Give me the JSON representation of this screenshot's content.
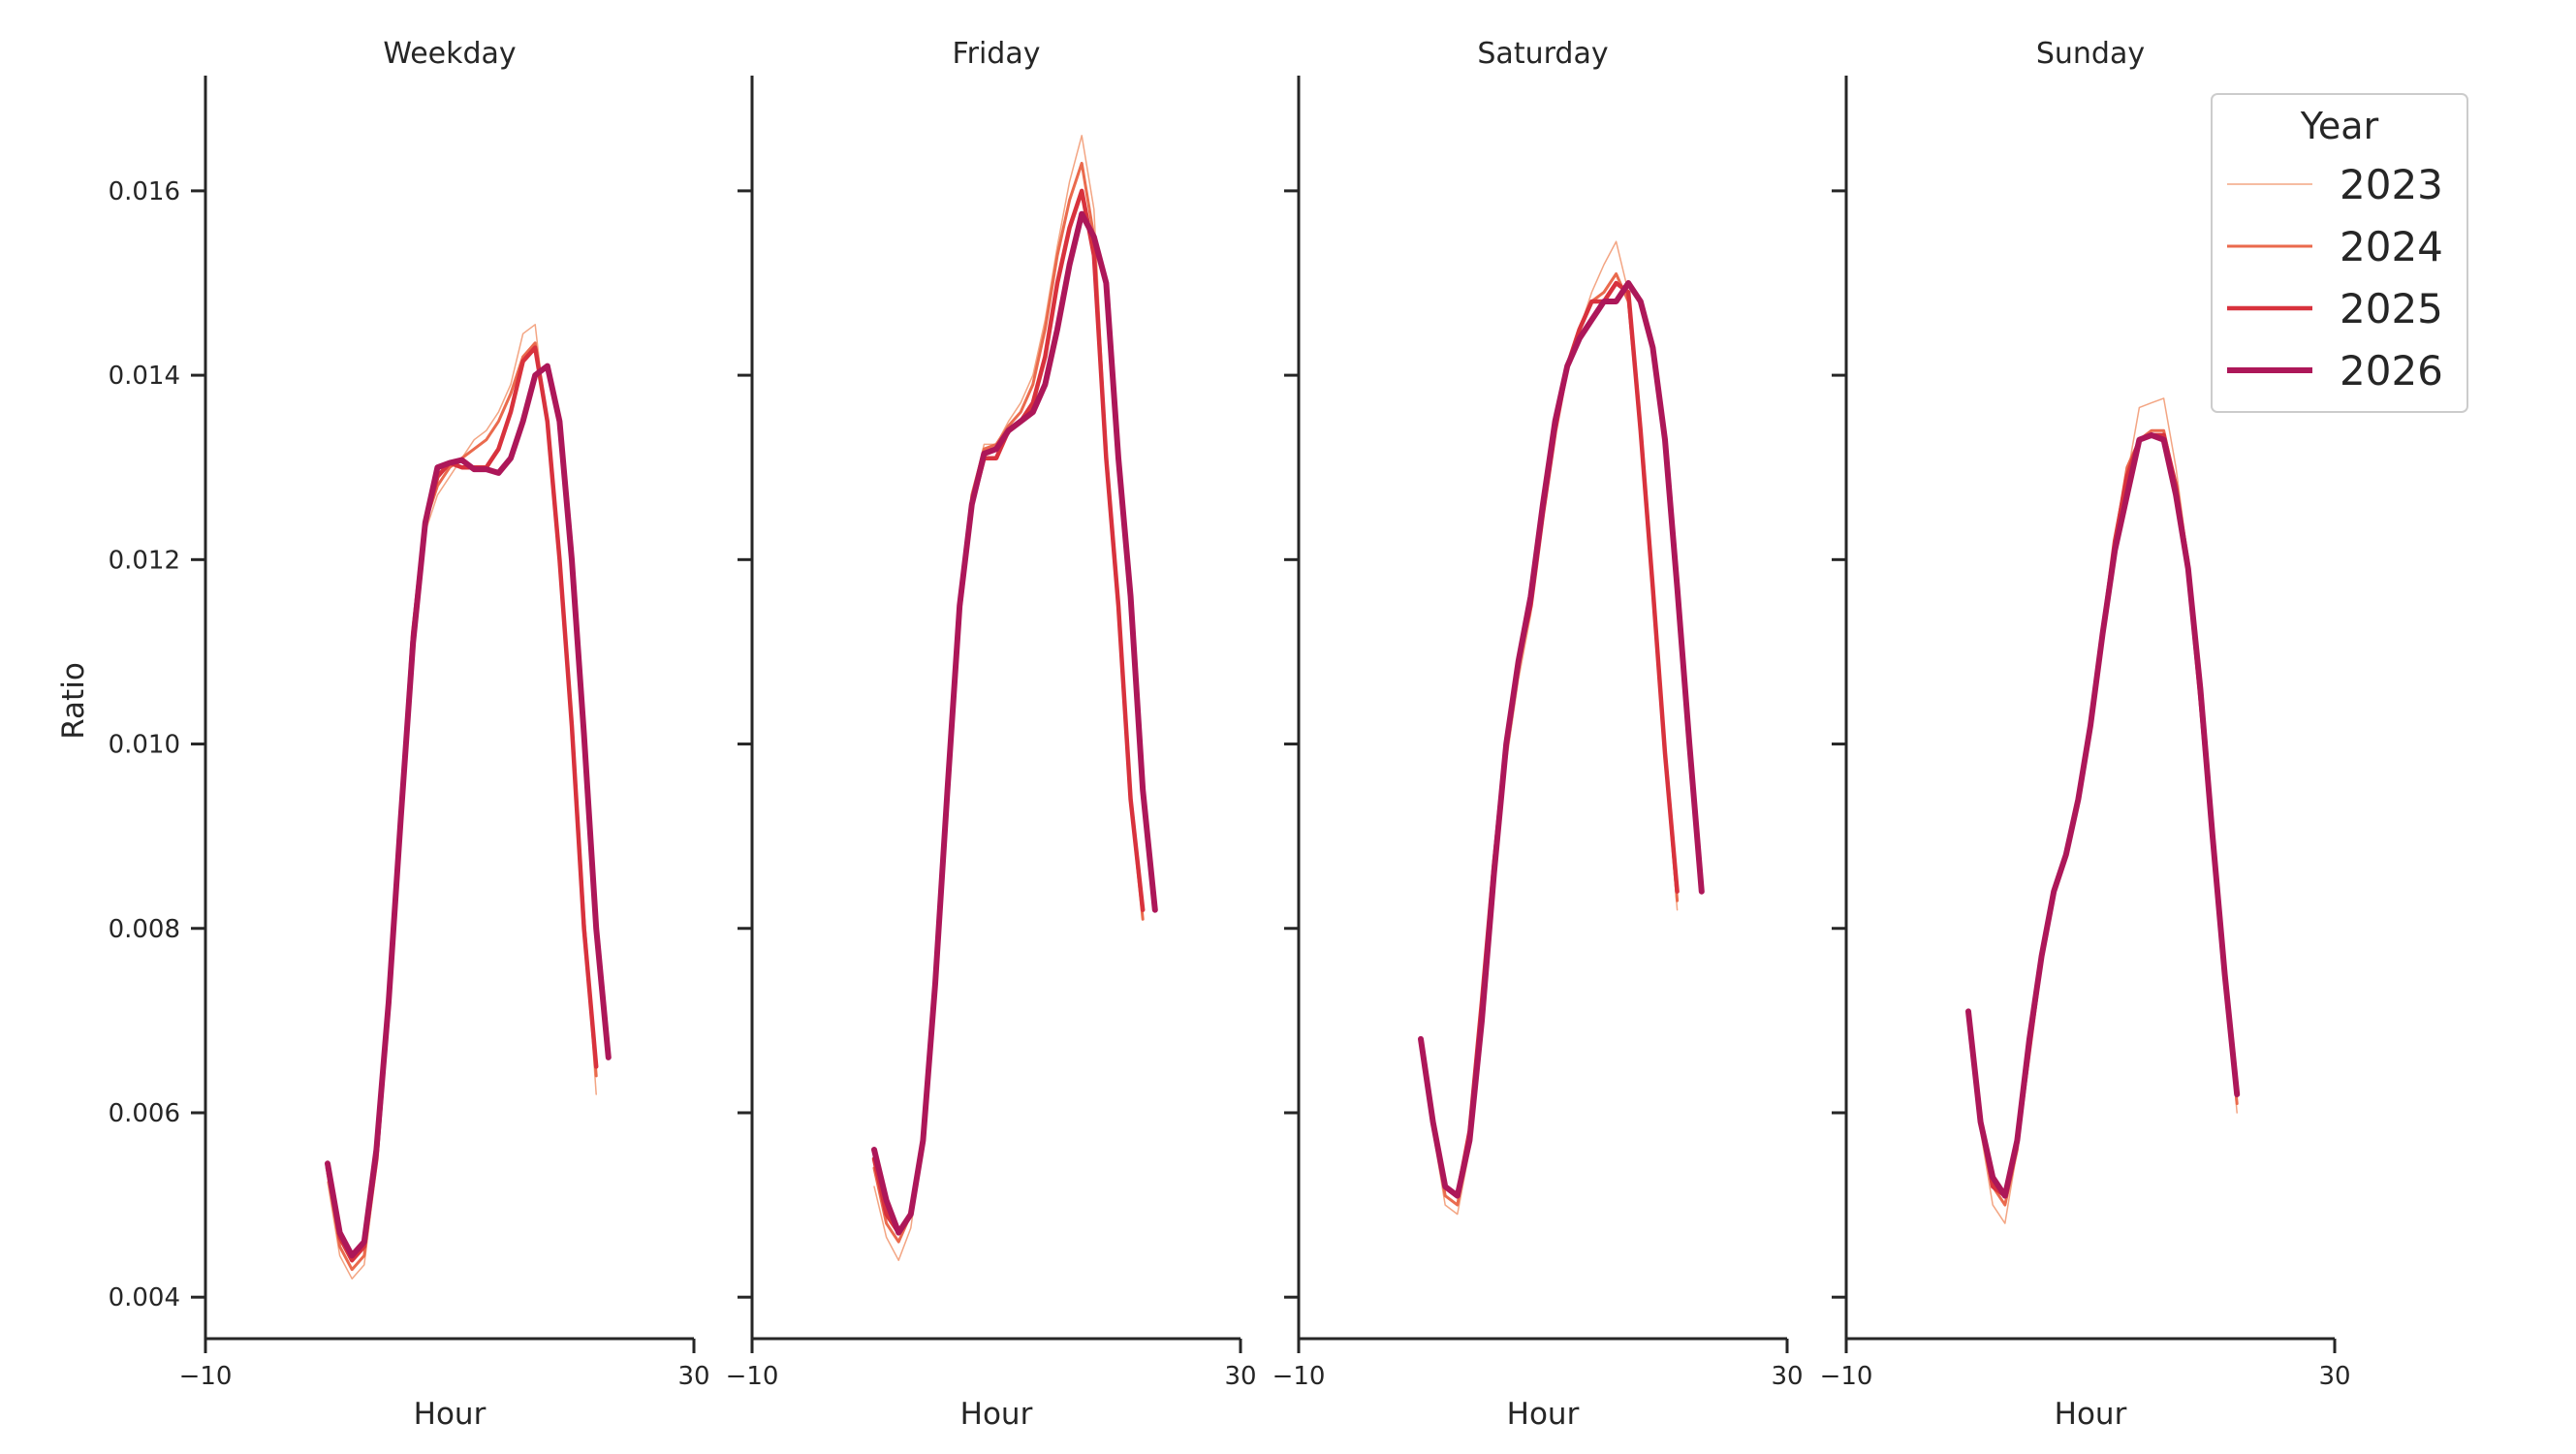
{
  "chart_data": {
    "type": "line",
    "ylabel": "Ratio",
    "xlabel": "Hour",
    "xlim": [
      -10,
      30
    ],
    "xticks": [
      -10,
      30
    ],
    "xtick_labels": [
      "−10",
      "30"
    ],
    "ylim": [
      0.00355,
      0.01725
    ],
    "yticks": [
      0.004,
      0.006,
      0.008,
      0.01,
      0.012,
      0.014,
      0.016
    ],
    "ytick_labels": [
      "0.004",
      "0.006",
      "0.008",
      "0.010",
      "0.012",
      "0.014",
      "0.016"
    ],
    "legend": {
      "title": "Year",
      "placement": "top-right",
      "entries": [
        {
          "label": "2023",
          "color": "#f3a583",
          "width": 1.5
        },
        {
          "label": "2024",
          "color": "#ea6a4d",
          "width": 3
        },
        {
          "label": "2025",
          "color": "#d8323d",
          "width": 4.5
        },
        {
          "label": "2026",
          "color": "#ad1759",
          "width": 6
        }
      ]
    },
    "panels": [
      {
        "title": "Weekday",
        "x": [
          0,
          1,
          2,
          3,
          4,
          5,
          6,
          7,
          8,
          9,
          10,
          11,
          12,
          13,
          14,
          15,
          16,
          17,
          18,
          19,
          20,
          21,
          22,
          23
        ],
        "series": [
          {
            "name": "2023",
            "values": [
              0.00525,
              0.00445,
              0.0042,
              0.00435,
              0.0054,
              0.0071,
              0.0091,
              0.0111,
              0.0123,
              0.0127,
              0.0129,
              0.0131,
              0.0133,
              0.0134,
              0.0136,
              0.0139,
              0.01445,
              0.01455,
              0.0134,
              0.0119,
              0.0101,
              0.0081,
              0.0062,
              null
            ]
          },
          {
            "name": "2024",
            "values": [
              0.00535,
              0.00455,
              0.0043,
              0.00445,
              0.0055,
              0.0072,
              0.0092,
              0.0112,
              0.0124,
              0.0128,
              0.013,
              0.0131,
              0.0132,
              0.0133,
              0.0135,
              0.0138,
              0.0142,
              0.01435,
              0.0135,
              0.012,
              0.0102,
              0.0081,
              0.0064,
              null
            ]
          },
          {
            "name": "2025",
            "values": [
              0.0054,
              0.00465,
              0.0044,
              0.00455,
              0.0055,
              0.0072,
              0.0092,
              0.0112,
              0.0124,
              0.0129,
              0.01305,
              0.013,
              0.013,
              0.013,
              0.0132,
              0.0136,
              0.01415,
              0.0143,
              0.0135,
              0.012,
              0.0102,
              0.008,
              0.0065,
              null
            ]
          },
          {
            "name": "2026",
            "values": [
              0.00545,
              0.0047,
              0.00445,
              0.0046,
              0.0056,
              0.0072,
              0.0092,
              0.0111,
              0.0124,
              0.013,
              0.01305,
              0.01308,
              0.01298,
              0.01298,
              0.01294,
              0.0131,
              0.0135,
              0.014,
              0.0141,
              0.0135,
              0.012,
              0.0101,
              0.008,
              0.0066
            ]
          }
        ]
      },
      {
        "title": "Friday",
        "x": [
          0,
          1,
          2,
          3,
          4,
          5,
          6,
          7,
          8,
          9,
          10,
          11,
          12,
          13,
          14,
          15,
          16,
          17,
          18,
          19,
          20,
          21,
          22,
          23
        ],
        "series": [
          {
            "name": "2023",
            "values": [
              0.0052,
              0.00465,
              0.0044,
              0.00475,
              0.0057,
              0.0074,
              0.0095,
              0.01145,
              0.0127,
              0.01325,
              0.01325,
              0.0135,
              0.0137,
              0.014,
              0.0146,
              0.0154,
              0.0161,
              0.0166,
              0.0158,
              0.0132,
              0.0116,
              0.0094,
              0.0081,
              null
            ]
          },
          {
            "name": "2024",
            "values": [
              0.0054,
              0.0048,
              0.0046,
              0.0049,
              0.0057,
              0.0074,
              0.0095,
              0.01145,
              0.0127,
              0.0132,
              0.01325,
              0.01345,
              0.0136,
              0.0139,
              0.0145,
              0.0153,
              0.0159,
              0.0163,
              0.0155,
              0.0131,
              0.0115,
              0.0094,
              0.0081,
              null
            ]
          },
          {
            "name": "2025",
            "values": [
              0.0055,
              0.0049,
              0.0047,
              0.0049,
              0.0057,
              0.0074,
              0.0095,
              0.01145,
              0.0126,
              0.0131,
              0.0131,
              0.0134,
              0.0135,
              0.0137,
              0.0142,
              0.015,
              0.0156,
              0.016,
              0.0153,
              0.0131,
              0.0115,
              0.0094,
              0.0082,
              null
            ]
          },
          {
            "name": "2026",
            "values": [
              0.0056,
              0.00505,
              0.0047,
              0.0049,
              0.0057,
              0.0074,
              0.0095,
              0.0115,
              0.0126,
              0.01315,
              0.0132,
              0.0134,
              0.0135,
              0.0136,
              0.0139,
              0.0145,
              0.0152,
              0.01575,
              0.0155,
              0.015,
              0.0131,
              0.0116,
              0.0095,
              0.0082
            ]
          }
        ]
      },
      {
        "title": "Saturday",
        "x": [
          0,
          1,
          2,
          3,
          4,
          5,
          6,
          7,
          8,
          9,
          10,
          11,
          12,
          13,
          14,
          15,
          16,
          17,
          18,
          19,
          20,
          21,
          22,
          23
        ],
        "series": [
          {
            "name": "2023",
            "values": [
              0.0067,
              0.0058,
              0.005,
              0.0049,
              0.0056,
              0.0071,
              0.0086,
              0.0098,
              0.0107,
              0.0114,
              0.0124,
              0.0134,
              0.0141,
              0.0145,
              0.0149,
              0.0152,
              0.01545,
              0.0149,
              0.0134,
              0.0117,
              0.0098,
              0.0082,
              null,
              null
            ]
          },
          {
            "name": "2024",
            "values": [
              0.0068,
              0.0059,
              0.0051,
              0.005,
              0.0057,
              0.0072,
              0.0087,
              0.0099,
              0.0108,
              0.0115,
              0.0125,
              0.0134,
              0.0141,
              0.0145,
              0.0148,
              0.0149,
              0.0151,
              0.0148,
              0.0134,
              0.0117,
              0.0099,
              0.0083,
              null,
              null
            ]
          },
          {
            "name": "2025",
            "values": [
              0.0068,
              0.0059,
              0.0052,
              0.0051,
              0.0058,
              0.0072,
              0.0087,
              0.01,
              0.0109,
              0.0115,
              0.0125,
              0.0134,
              0.0141,
              0.0145,
              0.0148,
              0.0148,
              0.015,
              0.0149,
              0.0134,
              0.0117,
              0.0099,
              0.0084,
              null,
              null
            ]
          },
          {
            "name": "2026",
            "values": [
              0.0068,
              0.0059,
              0.0052,
              0.0051,
              0.0057,
              0.007,
              0.0086,
              0.01,
              0.0109,
              0.0116,
              0.0126,
              0.0135,
              0.0141,
              0.0144,
              0.0146,
              0.0148,
              0.0148,
              0.015,
              0.0148,
              0.0143,
              0.0133,
              0.0117,
              0.01,
              0.0084
            ]
          }
        ]
      },
      {
        "title": "Sunday",
        "x": [
          0,
          1,
          2,
          3,
          4,
          5,
          6,
          7,
          8,
          9,
          10,
          11,
          12,
          13,
          14,
          15,
          16,
          17,
          18,
          19,
          20,
          21,
          22,
          23
        ],
        "series": [
          {
            "name": "2023",
            "values": [
              0.0071,
              0.0058,
              0.005,
              0.0048,
              0.0056,
              0.0066,
              0.0076,
              0.0084,
              0.0088,
              0.0093,
              0.0101,
              0.0111,
              0.0121,
              0.0129,
              0.01365,
              0.0137,
              0.01375,
              0.013,
              0.012,
              0.0106,
              0.0091,
              0.0075,
              0.006,
              null
            ]
          },
          {
            "name": "2024",
            "values": [
              0.0071,
              0.0059,
              0.0052,
              0.005,
              0.0056,
              0.0067,
              0.0077,
              0.0084,
              0.0088,
              0.0094,
              0.0102,
              0.0112,
              0.0122,
              0.013,
              0.0133,
              0.0134,
              0.0134,
              0.0128,
              0.012,
              0.0106,
              0.0091,
              0.0075,
              0.0061,
              null
            ]
          },
          {
            "name": "2025",
            "values": [
              0.0071,
              0.0059,
              0.0052,
              0.0051,
              0.0057,
              0.0067,
              0.0077,
              0.0084,
              0.0088,
              0.0094,
              0.0102,
              0.0112,
              0.0122,
              0.0129,
              0.0133,
              0.01335,
              0.01335,
              0.0128,
              0.0119,
              0.0105,
              0.009,
              0.0075,
              0.0062,
              null
            ]
          },
          {
            "name": "2026",
            "values": [
              0.0071,
              0.0059,
              0.0053,
              0.0051,
              0.0057,
              0.0068,
              0.0077,
              0.0084,
              0.0088,
              0.0094,
              0.0102,
              0.0112,
              0.0121,
              0.0127,
              0.0133,
              0.01335,
              0.0133,
              0.0127,
              0.0119,
              0.0106,
              0.009,
              0.0075,
              0.0062,
              null
            ]
          }
        ]
      }
    ]
  }
}
